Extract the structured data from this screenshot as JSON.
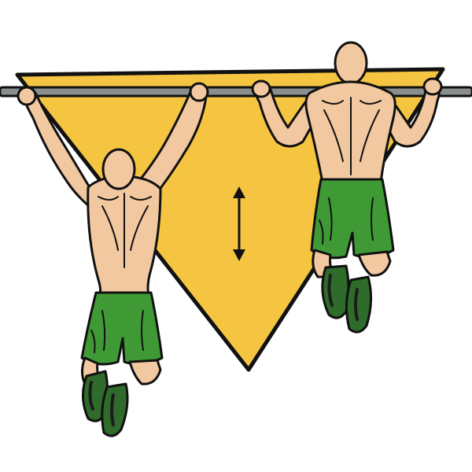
{
  "illustration": {
    "exercise": "pull-up",
    "figures": [
      {
        "name": "figure-hanging",
        "phase": "bottom"
      },
      {
        "name": "figure-pulled-up",
        "phase": "top"
      }
    ],
    "motion_indicator": "vertical-double-arrow",
    "colors": {
      "background": "#ffffff",
      "triangle_fill": "#f5c542",
      "outline": "#111111",
      "bar": "#8a8f8d",
      "skin": "#f2c8a0",
      "skin_shade": "#d9a77d",
      "shorts": "#3f9a35",
      "shorts_shade": "#2c7326",
      "shoes": "#2f6b2a",
      "shoes_dark": "#1c1c1c"
    }
  }
}
